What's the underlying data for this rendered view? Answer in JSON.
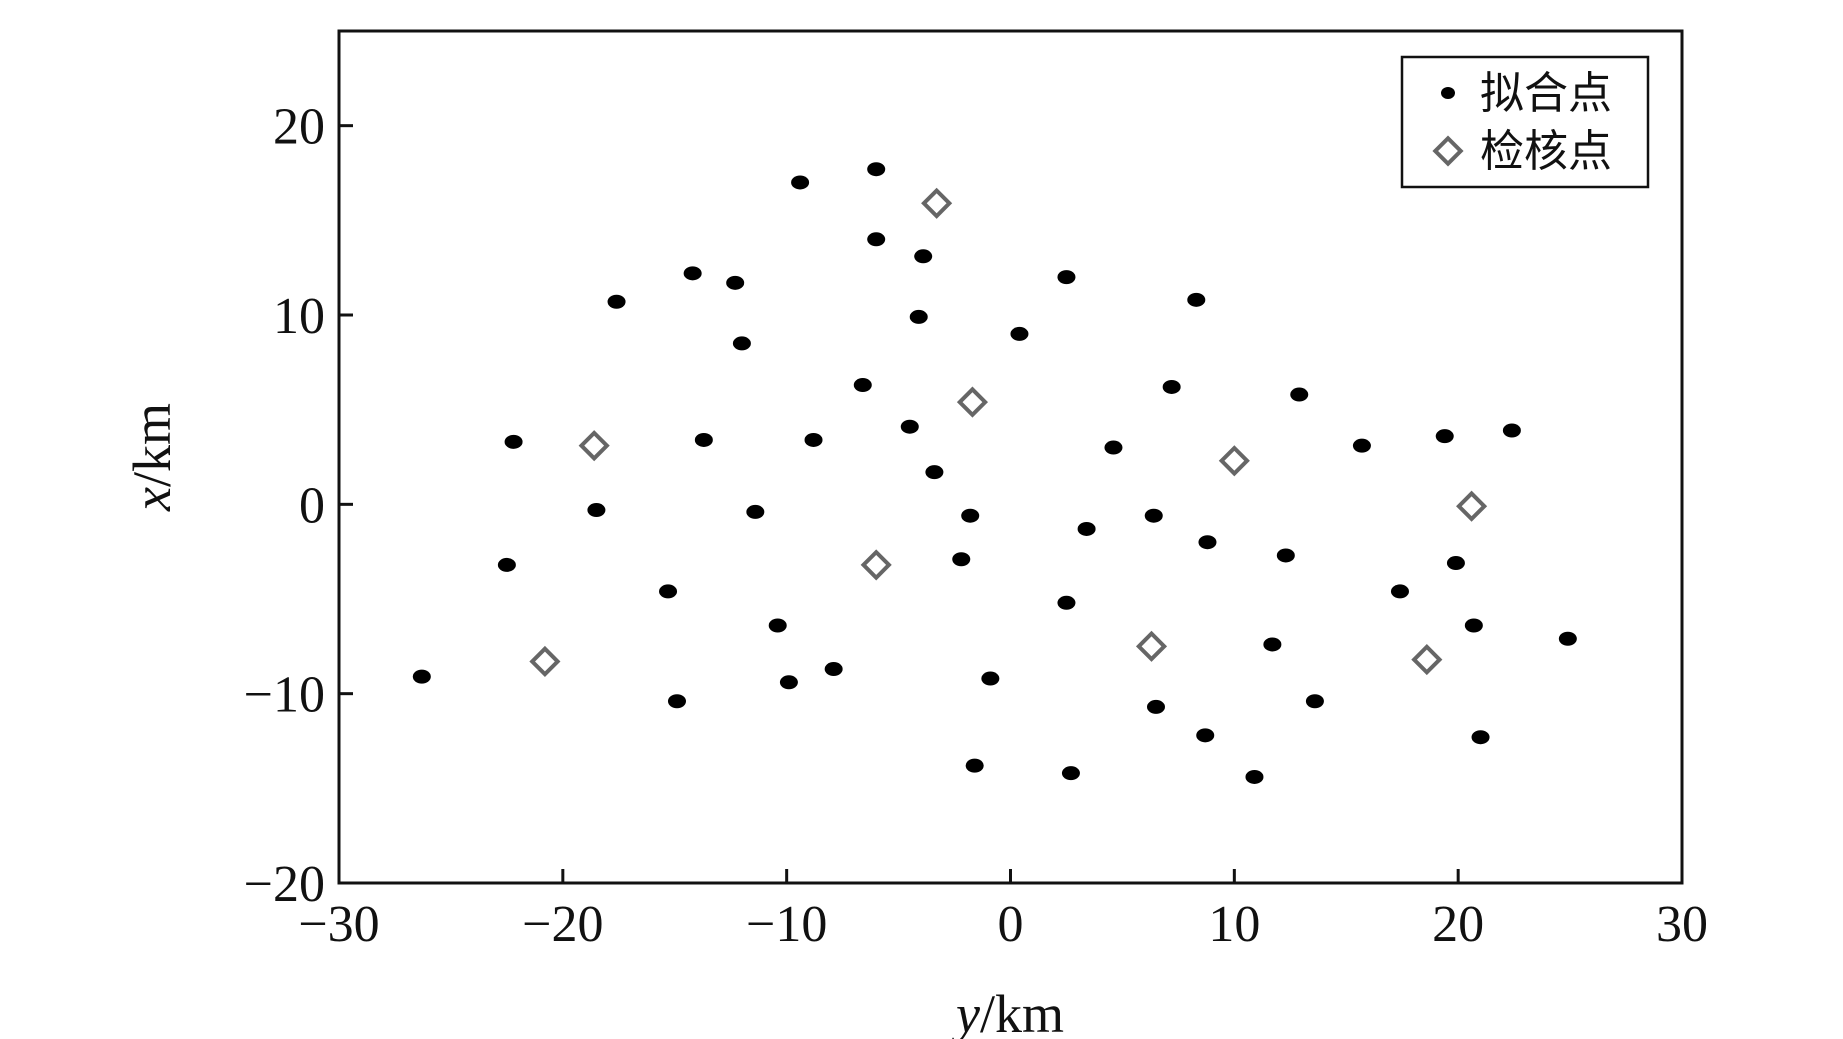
{
  "chart_data": {
    "type": "scatter",
    "xlabel_var": "y",
    "xlabel_unit": "/km",
    "ylabel_var": "x",
    "ylabel_unit": "/km",
    "xlim": [
      -30,
      30
    ],
    "ylim": [
      -20,
      25
    ],
    "xticks": [
      -30,
      -20,
      -10,
      0,
      10,
      20,
      30
    ],
    "yticks": [
      -20,
      -10,
      0,
      10,
      20
    ],
    "xtick_labels": [
      "−30",
      "−20",
      "−10",
      "0",
      "10",
      "20",
      "30"
    ],
    "ytick_labels": [
      "−20",
      "−10",
      "0",
      "10",
      "20"
    ],
    "grid": false,
    "legend_position": "top-right",
    "series": [
      {
        "name": "拟合点",
        "marker": "filled-ellipse",
        "color": "#000000",
        "points": [
          [
            -6.0,
            17.7
          ],
          [
            -9.4,
            17.0
          ],
          [
            -6.0,
            14.0
          ],
          [
            -3.9,
            13.1
          ],
          [
            2.5,
            12.0
          ],
          [
            -14.2,
            12.2
          ],
          [
            -12.3,
            11.7
          ],
          [
            -17.6,
            10.7
          ],
          [
            8.3,
            10.8
          ],
          [
            -4.1,
            9.9
          ],
          [
            0.4,
            9.0
          ],
          [
            -12.0,
            8.5
          ],
          [
            -6.6,
            6.3
          ],
          [
            7.2,
            6.2
          ],
          [
            12.9,
            5.8
          ],
          [
            -4.5,
            4.1
          ],
          [
            22.4,
            3.9
          ],
          [
            19.4,
            3.6
          ],
          [
            -22.2,
            3.3
          ],
          [
            -13.7,
            3.4
          ],
          [
            -8.8,
            3.4
          ],
          [
            4.6,
            3.0
          ],
          [
            15.7,
            3.1
          ],
          [
            -3.4,
            1.7
          ],
          [
            -18.5,
            -0.3
          ],
          [
            -11.4,
            -0.4
          ],
          [
            -1.8,
            -0.6
          ],
          [
            6.4,
            -0.6
          ],
          [
            3.4,
            -1.3
          ],
          [
            8.8,
            -2.0
          ],
          [
            -22.5,
            -3.2
          ],
          [
            -2.2,
            -2.9
          ],
          [
            12.3,
            -2.7
          ],
          [
            19.9,
            -3.1
          ],
          [
            -15.3,
            -4.6
          ],
          [
            17.4,
            -4.6
          ],
          [
            2.5,
            -5.2
          ],
          [
            -10.4,
            -6.4
          ],
          [
            20.7,
            -6.4
          ],
          [
            11.7,
            -7.4
          ],
          [
            24.9,
            -7.1
          ],
          [
            -26.3,
            -9.1
          ],
          [
            -7.9,
            -8.7
          ],
          [
            -9.9,
            -9.4
          ],
          [
            -0.9,
            -9.2
          ],
          [
            -14.9,
            -10.4
          ],
          [
            6.5,
            -10.7
          ],
          [
            13.6,
            -10.4
          ],
          [
            8.7,
            -12.2
          ],
          [
            21.0,
            -12.3
          ],
          [
            -1.6,
            -13.8
          ],
          [
            2.7,
            -14.2
          ],
          [
            10.9,
            -14.4
          ]
        ]
      },
      {
        "name": "检核点",
        "marker": "hollow-diamond",
        "color": "#666666",
        "points": [
          [
            -3.3,
            15.9
          ],
          [
            -1.7,
            5.4
          ],
          [
            -18.6,
            3.1
          ],
          [
            10.0,
            2.3
          ],
          [
            20.6,
            -0.1
          ],
          [
            -6.0,
            -3.2
          ],
          [
            -20.8,
            -8.3
          ],
          [
            6.3,
            -7.5
          ],
          [
            18.6,
            -8.2
          ]
        ]
      }
    ]
  }
}
